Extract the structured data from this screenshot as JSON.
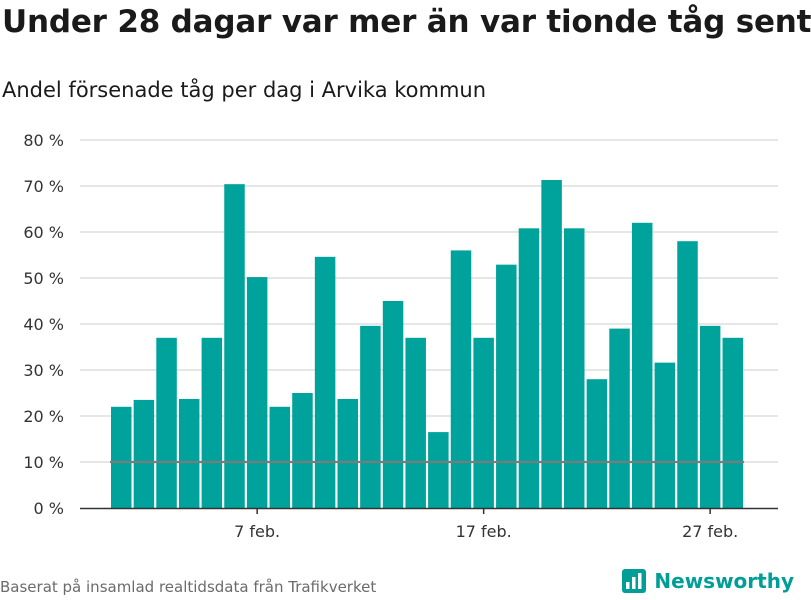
{
  "title": "Under 28 dagar var mer än var tionde tåg sent",
  "subtitle": "Andel försenade tåg per dag i Arvika kommun",
  "source": "Baserat på insamlad realtidsdata från Trafikverket",
  "brand": {
    "name": "Newsworthy",
    "icon": "bar-chart-logo-icon"
  },
  "colors": {
    "bar": "#00a39b",
    "reference_line": "#7a7a7a",
    "grid": "#d6d6d6",
    "axis": "#333333",
    "brand": "#009e96"
  },
  "chart_data": {
    "type": "bar",
    "title": "Under 28 dagar var mer än var tionde tåg sent",
    "subtitle": "Andel försenade tåg per dag i Arvika kommun",
    "x": [
      "2-01",
      "2-02",
      "2-03",
      "2-04",
      "2-05",
      "2-06",
      "2-07",
      "2-08",
      "2-09",
      "2-10",
      "2-11",
      "2-12",
      "2-13",
      "2-14",
      "2-15",
      "2-16",
      "2-17",
      "2-18",
      "2-19",
      "2-20",
      "2-21",
      "2-22",
      "2-23",
      "2-24",
      "2-25",
      "2-26",
      "2-27",
      "2-28"
    ],
    "values": [
      22,
      23.5,
      37,
      23.7,
      37,
      70.4,
      50.2,
      22,
      25,
      54.6,
      23.7,
      39.6,
      45,
      37,
      16.5,
      56,
      37,
      52.9,
      60.8,
      71.3,
      60.8,
      28,
      39,
      62,
      31.6,
      58,
      39.6,
      37
    ],
    "x_ticks": [
      {
        "index": 6,
        "label": "7 feb."
      },
      {
        "index": 16,
        "label": "17 feb."
      },
      {
        "index": 26,
        "label": "27 feb."
      }
    ],
    "y_ticks": [
      "0 %",
      "10 %",
      "20 %",
      "30 %",
      "40 %",
      "50 %",
      "60 %",
      "70 %",
      "80 %"
    ],
    "ylim": [
      0,
      80
    ],
    "reference_line": 10,
    "grid": true
  }
}
